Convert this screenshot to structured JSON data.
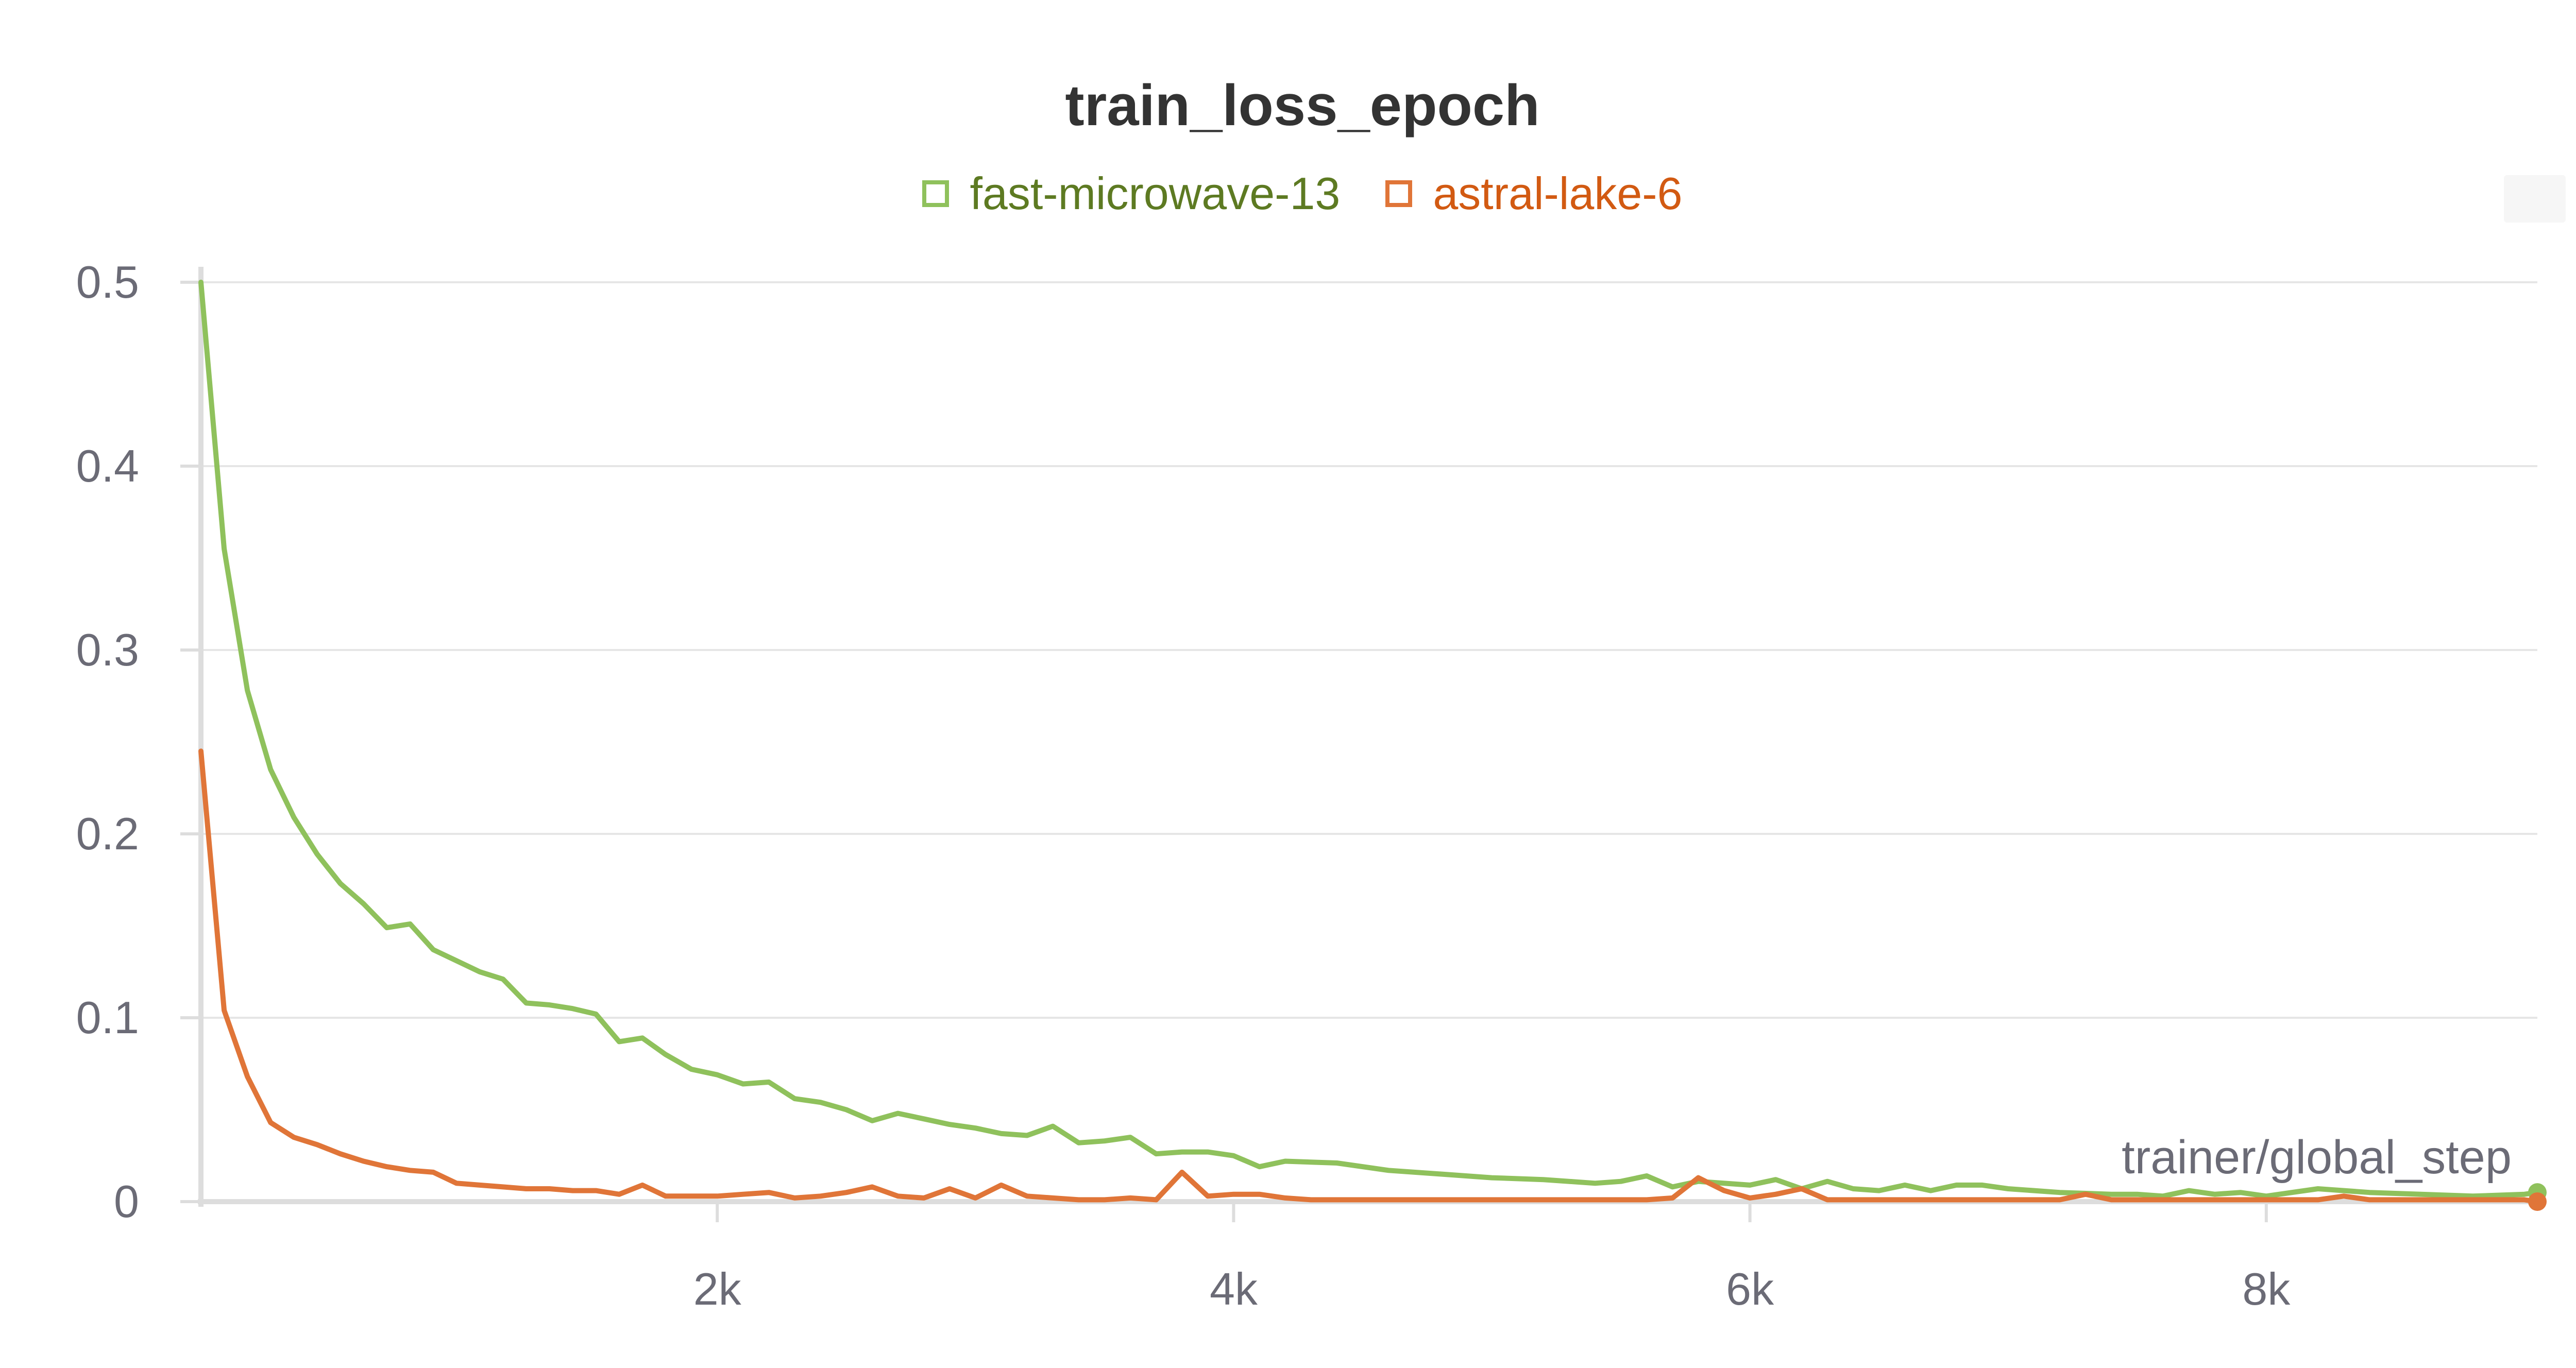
{
  "chart_data": {
    "type": "line",
    "title": "train_loss_epoch",
    "xlabel": "trainer/global_step",
    "ylabel": "",
    "xlim": [
      0,
      9050
    ],
    "ylim": [
      0,
      0.5
    ],
    "grid": true,
    "legend_position": "top-center",
    "x_ticks": [
      2000,
      4000,
      6000,
      8000
    ],
    "x_tick_labels": [
      "2k",
      "4k",
      "6k",
      "8k"
    ],
    "y_ticks": [
      0,
      0.1,
      0.2,
      0.3,
      0.4,
      0.5
    ],
    "y_tick_labels": [
      "0",
      "0.1",
      "0.2",
      "0.3",
      "0.4",
      "0.5"
    ],
    "series": [
      {
        "name": "fast-microwave-13",
        "color": "#8fc15c",
        "label_color": "#5d7a22",
        "x": [
          0,
          90,
          180,
          270,
          360,
          450,
          540,
          630,
          720,
          810,
          900,
          990,
          1080,
          1170,
          1260,
          1350,
          1440,
          1530,
          1620,
          1710,
          1800,
          1900,
          2000,
          2100,
          2200,
          2300,
          2400,
          2500,
          2600,
          2700,
          2800,
          2900,
          3000,
          3100,
          3200,
          3300,
          3400,
          3500,
          3600,
          3700,
          3800,
          3900,
          4000,
          4100,
          4200,
          4400,
          4600,
          4800,
          5000,
          5200,
          5400,
          5500,
          5600,
          5700,
          5800,
          6000,
          6100,
          6200,
          6300,
          6400,
          6500,
          6600,
          6700,
          6800,
          6900,
          7000,
          7200,
          7400,
          7500,
          7600,
          7700,
          7800,
          7900,
          8000,
          8200,
          8400,
          8600,
          8800,
          9000,
          9050
        ],
        "values": [
          0.5,
          0.355,
          0.278,
          0.235,
          0.209,
          0.189,
          0.173,
          0.162,
          0.149,
          0.151,
          0.137,
          0.131,
          0.125,
          0.121,
          0.108,
          0.107,
          0.105,
          0.102,
          0.087,
          0.089,
          0.08,
          0.072,
          0.069,
          0.064,
          0.065,
          0.056,
          0.054,
          0.05,
          0.044,
          0.048,
          0.045,
          0.042,
          0.04,
          0.037,
          0.036,
          0.041,
          0.032,
          0.033,
          0.035,
          0.026,
          0.027,
          0.027,
          0.025,
          0.019,
          0.022,
          0.021,
          0.017,
          0.015,
          0.013,
          0.012,
          0.01,
          0.011,
          0.014,
          0.008,
          0.011,
          0.009,
          0.012,
          0.007,
          0.011,
          0.007,
          0.006,
          0.009,
          0.006,
          0.009,
          0.009,
          0.007,
          0.005,
          0.004,
          0.004,
          0.003,
          0.006,
          0.004,
          0.005,
          0.003,
          0.007,
          0.005,
          0.004,
          0.003,
          0.004,
          0.005
        ]
      },
      {
        "name": "astral-lake-6",
        "color": "#e07538",
        "label_color": "#d25a12",
        "x": [
          0,
          90,
          180,
          270,
          360,
          450,
          540,
          630,
          720,
          810,
          900,
          990,
          1080,
          1170,
          1260,
          1350,
          1440,
          1530,
          1620,
          1710,
          1800,
          1900,
          2000,
          2100,
          2200,
          2300,
          2400,
          2500,
          2600,
          2700,
          2800,
          2900,
          3000,
          3100,
          3200,
          3300,
          3400,
          3500,
          3600,
          3700,
          3800,
          3900,
          4000,
          4100,
          4200,
          4300,
          4400,
          4600,
          4800,
          5000,
          5200,
          5400,
          5600,
          5700,
          5800,
          5900,
          6000,
          6100,
          6200,
          6300,
          6400,
          6600,
          6800,
          7000,
          7200,
          7300,
          7400,
          7600,
          7800,
          8000,
          8200,
          8300,
          8400,
          8600,
          8800,
          9000,
          9050
        ],
        "values": [
          0.245,
          0.104,
          0.068,
          0.043,
          0.035,
          0.031,
          0.026,
          0.022,
          0.019,
          0.017,
          0.016,
          0.01,
          0.009,
          0.008,
          0.007,
          0.007,
          0.006,
          0.006,
          0.004,
          0.009,
          0.003,
          0.003,
          0.003,
          0.004,
          0.005,
          0.002,
          0.003,
          0.005,
          0.008,
          0.003,
          0.002,
          0.007,
          0.002,
          0.009,
          0.003,
          0.002,
          0.001,
          0.001,
          0.002,
          0.001,
          0.016,
          0.003,
          0.004,
          0.004,
          0.002,
          0.001,
          0.001,
          0.001,
          0.001,
          0.001,
          0.001,
          0.001,
          0.001,
          0.002,
          0.013,
          0.006,
          0.002,
          0.004,
          0.007,
          0.001,
          0.001,
          0.001,
          0.001,
          0.001,
          0.001,
          0.004,
          0.001,
          0.001,
          0.001,
          0.001,
          0.001,
          0.003,
          0.001,
          0.001,
          0.001,
          0.001,
          0.0
        ]
      }
    ]
  }
}
